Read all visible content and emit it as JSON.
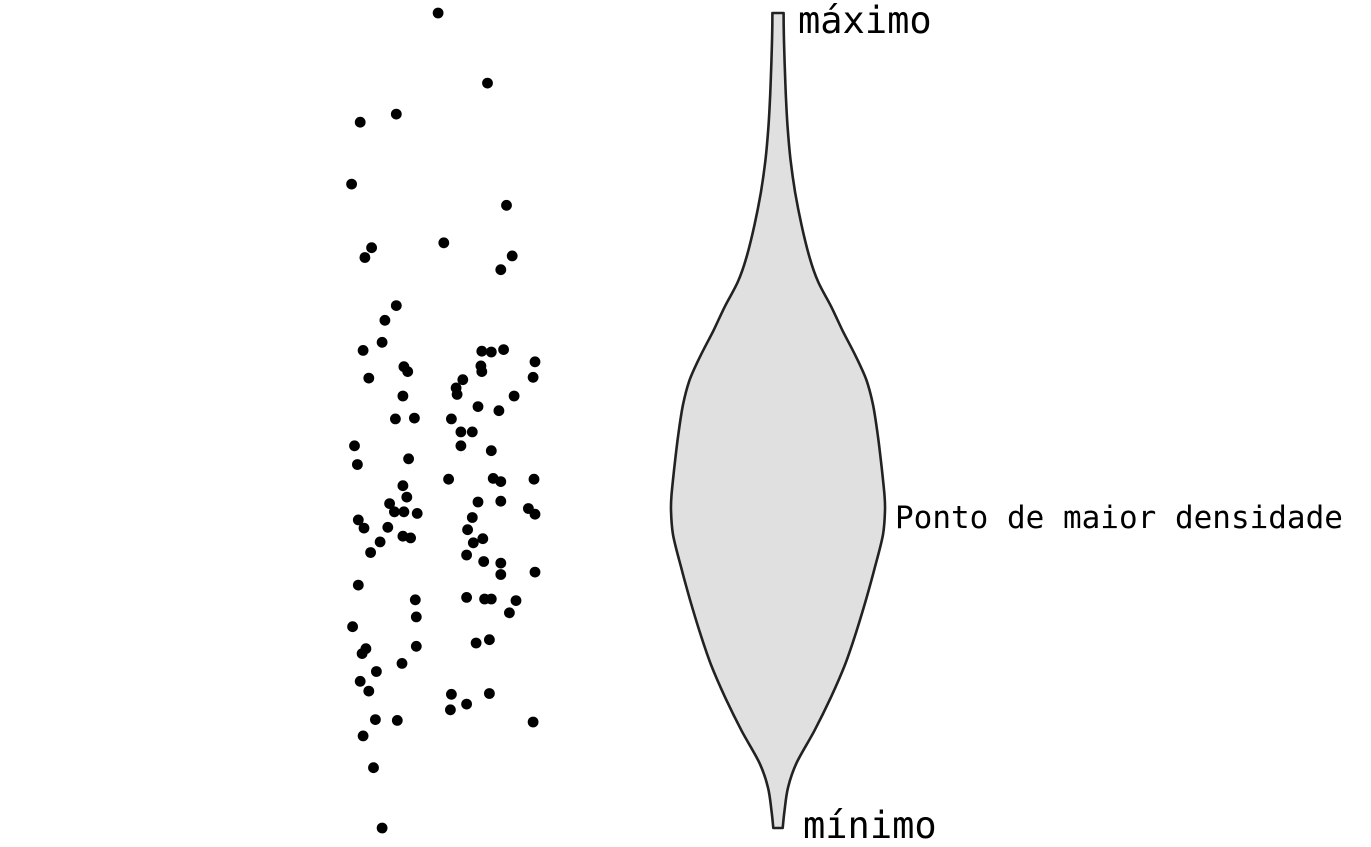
{
  "chart_data": [
    {
      "type": "scatter",
      "subtype": "jitter strip plot",
      "title": "",
      "xlabel": "",
      "ylabel": "",
      "ylim": [
        0,
        100
      ],
      "xlim": [
        -1,
        1
      ],
      "points": [
        {
          "x": -0.02,
          "y": 100.0
        },
        {
          "x": 0.5,
          "y": 91.4
        },
        {
          "x": -0.84,
          "y": 86.6
        },
        {
          "x": -0.46,
          "y": 87.6
        },
        {
          "x": -0.93,
          "y": 79.0
        },
        {
          "x": 0.7,
          "y": 76.4
        },
        {
          "x": 0.04,
          "y": 71.8
        },
        {
          "x": -0.72,
          "y": 71.2
        },
        {
          "x": -0.79,
          "y": 70.0
        },
        {
          "x": 0.76,
          "y": 70.2
        },
        {
          "x": 0.64,
          "y": 68.5
        },
        {
          "x": -0.46,
          "y": 64.1
        },
        {
          "x": -0.58,
          "y": 62.3
        },
        {
          "x": -0.61,
          "y": 59.6
        },
        {
          "x": -0.81,
          "y": 58.6
        },
        {
          "x": 0.44,
          "y": 58.5
        },
        {
          "x": 0.54,
          "y": 58.4
        },
        {
          "x": 0.67,
          "y": 58.7
        },
        {
          "x": 1.0,
          "y": 57.2
        },
        {
          "x": -0.38,
          "y": 56.6
        },
        {
          "x": -0.34,
          "y": 56.0
        },
        {
          "x": 0.43,
          "y": 56.7
        },
        {
          "x": 0.44,
          "y": 56.0
        },
        {
          "x": -0.75,
          "y": 55.2
        },
        {
          "x": 0.24,
          "y": 55.0
        },
        {
          "x": 0.98,
          "y": 55.3
        },
        {
          "x": 0.17,
          "y": 54.0
        },
        {
          "x": 0.18,
          "y": 53.2
        },
        {
          "x": -0.39,
          "y": 53.0
        },
        {
          "x": 0.78,
          "y": 53.0
        },
        {
          "x": 0.4,
          "y": 51.7
        },
        {
          "x": 0.62,
          "y": 51.2
        },
        {
          "x": -0.47,
          "y": 50.2
        },
        {
          "x": -0.27,
          "y": 50.3
        },
        {
          "x": 0.12,
          "y": 50.2
        },
        {
          "x": 0.22,
          "y": 48.6
        },
        {
          "x": 0.34,
          "y": 48.6
        },
        {
          "x": -0.9,
          "y": 46.9
        },
        {
          "x": 0.22,
          "y": 46.9
        },
        {
          "x": 0.54,
          "y": 46.3
        },
        {
          "x": -0.33,
          "y": 45.3
        },
        {
          "x": -0.87,
          "y": 44.6
        },
        {
          "x": 0.09,
          "y": 42.8
        },
        {
          "x": 0.56,
          "y": 42.9
        },
        {
          "x": 0.64,
          "y": 42.5
        },
        {
          "x": 0.99,
          "y": 42.8
        },
        {
          "x": -0.39,
          "y": 42.0
        },
        {
          "x": -0.35,
          "y": 40.6
        },
        {
          "x": 0.4,
          "y": 40.0
        },
        {
          "x": 0.64,
          "y": 40.1
        },
        {
          "x": -0.53,
          "y": 39.8
        },
        {
          "x": -0.48,
          "y": 38.8
        },
        {
          "x": -0.38,
          "y": 38.8
        },
        {
          "x": -0.24,
          "y": 38.6
        },
        {
          "x": 0.93,
          "y": 39.2
        },
        {
          "x": 1.0,
          "y": 38.5
        },
        {
          "x": -0.86,
          "y": 37.8
        },
        {
          "x": 0.34,
          "y": 38.1
        },
        {
          "x": -0.8,
          "y": 36.8
        },
        {
          "x": -0.55,
          "y": 36.9
        },
        {
          "x": 0.29,
          "y": 36.6
        },
        {
          "x": -0.39,
          "y": 35.8
        },
        {
          "x": -0.63,
          "y": 35.1
        },
        {
          "x": 0.45,
          "y": 35.5
        },
        {
          "x": -0.31,
          "y": 35.6
        },
        {
          "x": 0.35,
          "y": 35.0
        },
        {
          "x": 0.28,
          "y": 33.5
        },
        {
          "x": -0.73,
          "y": 33.8
        },
        {
          "x": 0.46,
          "y": 32.7
        },
        {
          "x": 0.64,
          "y": 32.5
        },
        {
          "x": 1.0,
          "y": 31.4
        },
        {
          "x": 0.64,
          "y": 31.1
        },
        {
          "x": -0.86,
          "y": 29.8
        },
        {
          "x": -0.26,
          "y": 28.0
        },
        {
          "x": 0.28,
          "y": 28.3
        },
        {
          "x": 0.47,
          "y": 28.1
        },
        {
          "x": 0.54,
          "y": 28.1
        },
        {
          "x": 0.8,
          "y": 27.9
        },
        {
          "x": -0.25,
          "y": 25.9
        },
        {
          "x": 0.73,
          "y": 26.4
        },
        {
          "x": -0.92,
          "y": 24.7
        },
        {
          "x": 0.52,
          "y": 23.1
        },
        {
          "x": 0.38,
          "y": 22.7
        },
        {
          "x": -0.25,
          "y": 22.3
        },
        {
          "x": -0.82,
          "y": 21.4
        },
        {
          "x": -0.78,
          "y": 22.0
        },
        {
          "x": -0.4,
          "y": 20.2
        },
        {
          "x": -0.67,
          "y": 19.2
        },
        {
          "x": -0.84,
          "y": 18.0
        },
        {
          "x": -0.75,
          "y": 16.8
        },
        {
          "x": 0.12,
          "y": 16.4
        },
        {
          "x": 0.52,
          "y": 16.5
        },
        {
          "x": 0.11,
          "y": 14.5
        },
        {
          "x": 0.28,
          "y": 15.2
        },
        {
          "x": -0.68,
          "y": 13.3
        },
        {
          "x": -0.45,
          "y": 13.2
        },
        {
          "x": 0.98,
          "y": 13.0
        },
        {
          "x": -0.81,
          "y": 11.3
        },
        {
          "x": -0.7,
          "y": 7.4
        },
        {
          "x": -0.61,
          "y": 0.0
        }
      ]
    },
    {
      "type": "violin",
      "title": "",
      "xlabel": "",
      "ylabel": "",
      "ylim": [
        0,
        100
      ],
      "fill_color": "#e0e0e0",
      "stroke_color": "#222222",
      "density_profile": [
        {
          "y": 0,
          "halfwidth": 0.044
        },
        {
          "y": 2,
          "halfwidth": 0.06
        },
        {
          "y": 5,
          "halfwidth": 0.094
        },
        {
          "y": 8,
          "halfwidth": 0.174
        },
        {
          "y": 12,
          "halfwidth": 0.343
        },
        {
          "y": 16,
          "halfwidth": 0.493
        },
        {
          "y": 20,
          "halfwidth": 0.625
        },
        {
          "y": 24,
          "halfwidth": 0.73
        },
        {
          "y": 28,
          "halfwidth": 0.822
        },
        {
          "y": 32,
          "halfwidth": 0.906
        },
        {
          "y": 36,
          "halfwidth": 0.981
        },
        {
          "y": 39,
          "halfwidth": 1.0
        },
        {
          "y": 41,
          "halfwidth": 0.994
        },
        {
          "y": 44,
          "halfwidth": 0.971
        },
        {
          "y": 48,
          "halfwidth": 0.935
        },
        {
          "y": 52,
          "halfwidth": 0.887
        },
        {
          "y": 55,
          "halfwidth": 0.825
        },
        {
          "y": 58,
          "halfwidth": 0.722
        },
        {
          "y": 61,
          "halfwidth": 0.605
        },
        {
          "y": 64,
          "halfwidth": 0.496
        },
        {
          "y": 67,
          "halfwidth": 0.376
        },
        {
          "y": 70,
          "halfwidth": 0.295
        },
        {
          "y": 74,
          "halfwidth": 0.22
        },
        {
          "y": 78,
          "halfwidth": 0.16
        },
        {
          "y": 82,
          "halfwidth": 0.117
        },
        {
          "y": 86,
          "halfwidth": 0.09
        },
        {
          "y": 90,
          "halfwidth": 0.073
        },
        {
          "y": 94,
          "halfwidth": 0.062
        },
        {
          "y": 97,
          "halfwidth": 0.055
        },
        {
          "y": 100,
          "halfwidth": 0.052
        }
      ],
      "annotations": [
        {
          "role": "max",
          "text": "máximo",
          "y": 100
        },
        {
          "role": "mode",
          "text": "Ponto de maior densidade",
          "y": 39
        },
        {
          "role": "min",
          "text": "mínimo",
          "y": 0
        }
      ]
    }
  ],
  "labels": {
    "max": "máximo",
    "mode": "Ponto de maior densidade",
    "min": "mínimo"
  }
}
